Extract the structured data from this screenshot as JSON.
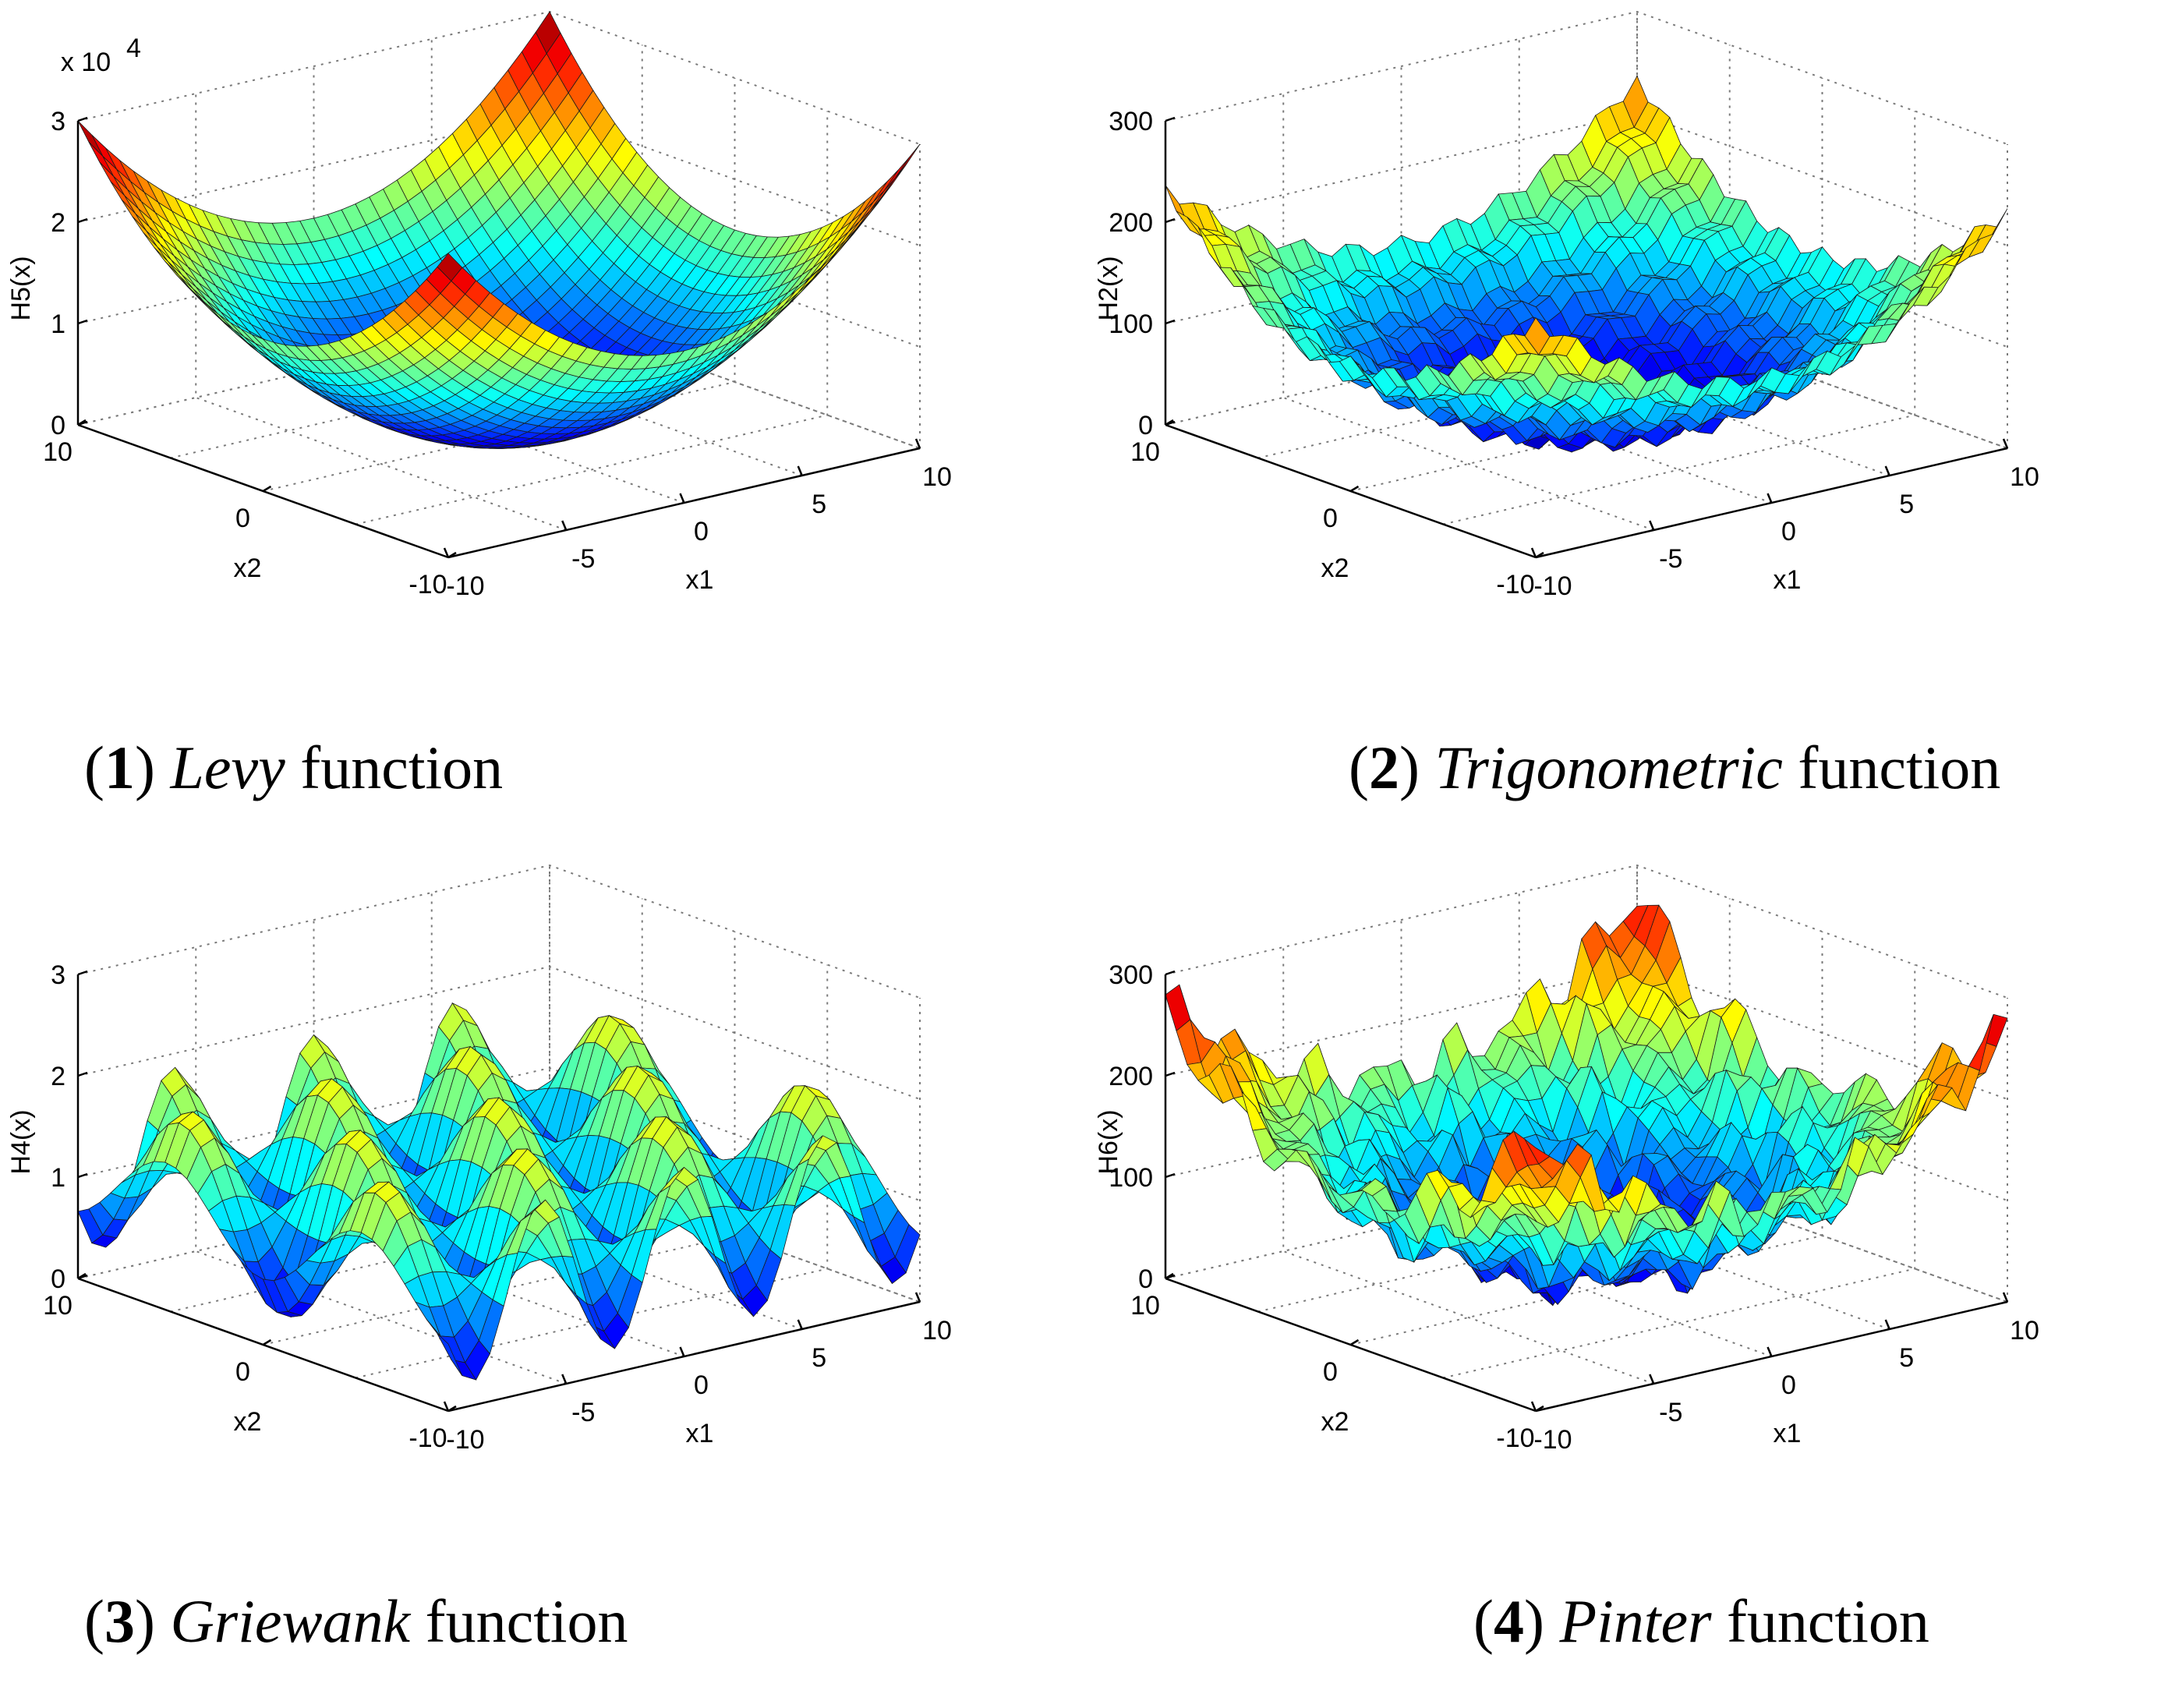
{
  "chart_data": [
    {
      "type": "surface3d",
      "title": "Levy function",
      "caption_number": "1",
      "caption_name": "Levy",
      "caption_suffix": "function",
      "xlabel": "x1",
      "ylabel": "x2",
      "zlabel": "H5(x)",
      "zscale_label": "x 10",
      "zscale_exponent": "4",
      "xlim": [
        -10,
        10
      ],
      "ylim": [
        -10,
        10
      ],
      "zlim": [
        0,
        3
      ],
      "xticks": [
        "-10",
        "-5",
        "0",
        "5",
        "10"
      ],
      "yticks": [
        "-10",
        "0",
        "10"
      ],
      "zticks": [
        "0",
        "1",
        "2",
        "3"
      ],
      "function": "levy",
      "grid": true
    },
    {
      "type": "surface3d",
      "title": "Trigonometric function",
      "caption_number": "2",
      "caption_name": "Trigonometric",
      "caption_suffix": "function",
      "xlabel": "x1",
      "ylabel": "x2",
      "zlabel": "H2(x)",
      "xlim": [
        -10,
        10
      ],
      "ylim": [
        -10,
        10
      ],
      "zlim": [
        0,
        300
      ],
      "xticks": [
        "-10",
        "-5",
        "0",
        "5",
        "10"
      ],
      "yticks": [
        "-10",
        "0",
        "10"
      ],
      "zticks": [
        "0",
        "100",
        "200",
        "300"
      ],
      "function": "trigonometric",
      "grid": true
    },
    {
      "type": "surface3d",
      "title": "Griewank function",
      "caption_number": "3",
      "caption_name": "Griewank",
      "caption_suffix": "function",
      "xlabel": "x1",
      "ylabel": "x2",
      "zlabel": "H4(x)",
      "xlim": [
        -10,
        10
      ],
      "ylim": [
        -10,
        10
      ],
      "zlim": [
        0,
        3
      ],
      "xticks": [
        "-10",
        "-5",
        "0",
        "5",
        "10"
      ],
      "yticks": [
        "-10",
        "0",
        "10"
      ],
      "zticks": [
        "0",
        "1",
        "2",
        "3"
      ],
      "function": "griewank",
      "grid": true
    },
    {
      "type": "surface3d",
      "title": "Pinter function",
      "caption_number": "4",
      "caption_name": "Pinter",
      "caption_suffix": "function",
      "xlabel": "x1",
      "ylabel": "x2",
      "zlabel": "H6(x)",
      "xlim": [
        -10,
        10
      ],
      "ylim": [
        -10,
        10
      ],
      "zlim": [
        0,
        300
      ],
      "xticks": [
        "-10",
        "-5",
        "0",
        "5",
        "10"
      ],
      "yticks": [
        "-10",
        "0",
        "10"
      ],
      "zticks": [
        "0",
        "100",
        "200",
        "300"
      ],
      "function": "pinter",
      "grid": true
    }
  ]
}
